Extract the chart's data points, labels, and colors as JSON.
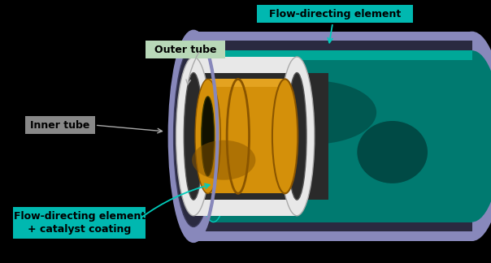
{
  "background_color": "#000000",
  "labels": {
    "flow_directing_element": "Flow-directing element",
    "outer_tube": "Outer tube",
    "inner_tube": "Inner tube",
    "flow_catalyst": "Flow-directing element\n+ catalyst coating"
  },
  "label_box_colors": {
    "flow_directing_element": "#00b8b0",
    "outer_tube": "#b8d8b8",
    "inner_tube": "#888888",
    "flow_catalyst": "#00b8b0"
  },
  "colors": {
    "outer_tube_lavender": "#8888bb",
    "outer_tube_dark": "#2a2a40",
    "outer_tube_mid": "#3a3a5a",
    "teal_bright": "#00a898",
    "teal_mid": "#007a70",
    "teal_dark": "#004a45",
    "teal_light": "#00ccbb",
    "gold": "#d4900a",
    "gold_dark": "#8a5500",
    "gold_light": "#f0b030",
    "gray_light": "#cccccc",
    "gray_mid": "#888888",
    "gray_dark": "#444444",
    "white": "#e8e8e8"
  }
}
